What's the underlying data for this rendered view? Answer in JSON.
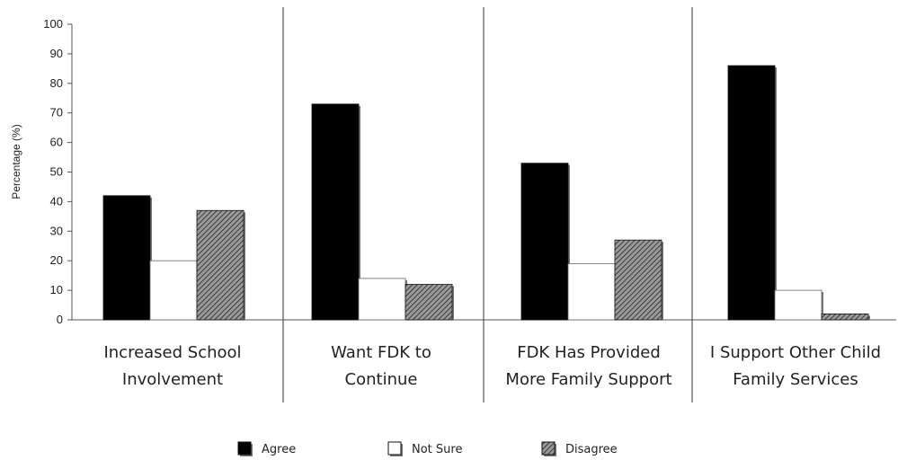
{
  "chart_data": {
    "type": "bar",
    "categories": [
      [
        "Increased School",
        "Involvement"
      ],
      [
        "Want FDK to",
        "Continue"
      ],
      [
        "FDK Has Provided",
        "More Family Support"
      ],
      [
        "I Support Other Child",
        "Family Services"
      ]
    ],
    "series": [
      {
        "name": "Agree",
        "values": [
          42,
          73,
          53,
          86
        ],
        "fill": "#000000",
        "pattern": "solid"
      },
      {
        "name": "Not Sure",
        "values": [
          20,
          14,
          19,
          10
        ],
        "fill": "#ffffff",
        "pattern": "none"
      },
      {
        "name": "Disagree",
        "values": [
          37,
          12,
          27,
          2
        ],
        "fill": "#8a8a8a",
        "pattern": "hatch"
      }
    ],
    "ylabel": "Percentage (%)",
    "xlabel": "",
    "ylim": [
      0,
      100
    ],
    "yticks": [
      0,
      10,
      20,
      30,
      40,
      50,
      60,
      70,
      80,
      90,
      100
    ],
    "grid": false,
    "legend_position": "bottom"
  }
}
